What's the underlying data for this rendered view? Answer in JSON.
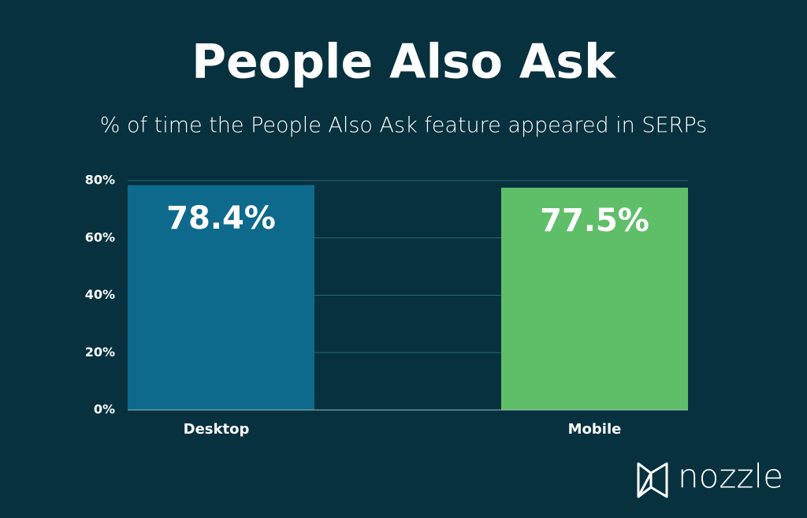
{
  "chart_data": {
    "type": "bar",
    "title": "People Also Ask",
    "subtitle": "% of time the People Also Ask feature appeared in SERPs",
    "categories": [
      "Desktop",
      "Mobile"
    ],
    "values": [
      78.4,
      77.5
    ],
    "value_labels": [
      "78.4%",
      "77.5%"
    ],
    "colors": [
      "#0e6a8c",
      "#5fbf69"
    ],
    "ylim": [
      0,
      80
    ],
    "yticks": [
      {
        "value": 0,
        "label": "0%"
      },
      {
        "value": 20,
        "label": "20%"
      },
      {
        "value": 40,
        "label": "40%"
      },
      {
        "value": 60,
        "label": "60%"
      },
      {
        "value": 80,
        "label": "80%"
      }
    ],
    "grid": true
  },
  "logo": "nozzle"
}
